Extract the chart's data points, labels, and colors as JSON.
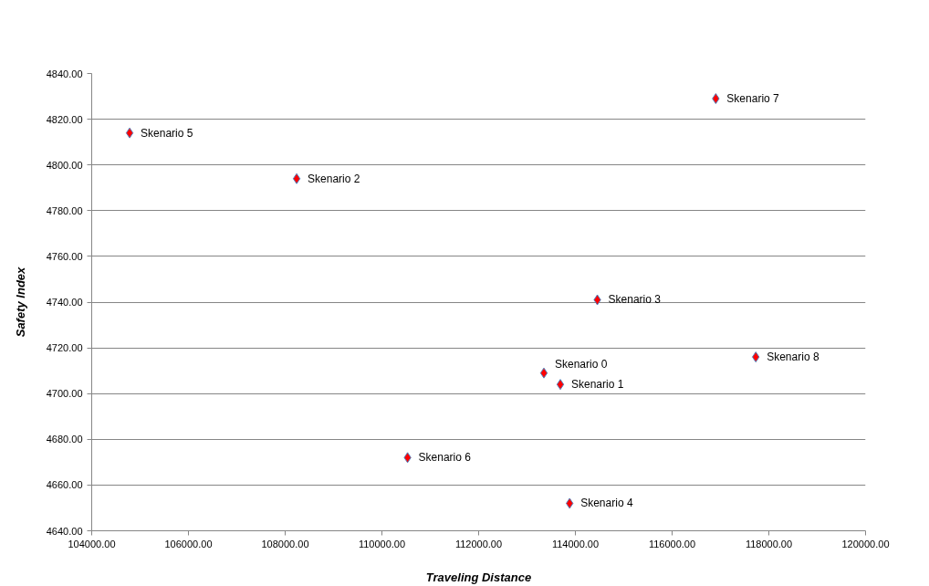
{
  "chart_data": {
    "type": "scatter",
    "xlabel": "Traveling Distance",
    "ylabel": "Safety Index",
    "x": [
      113349,
      113689,
      108237,
      114454,
      113881,
      104784,
      110530,
      116903,
      117730
    ],
    "series": [
      {
        "color": "#ff0000",
        "values": [
          4709,
          4704,
          4794,
          4741,
          4652,
          4814,
          4672,
          4829,
          4716
        ]
      }
    ],
    "annotations": [
      {
        "text": "Skenario 0",
        "x": 113349,
        "y": 4709
      },
      {
        "text": "Skenario 1",
        "x": 113689,
        "y": 4704
      },
      {
        "text": "Skenario 2",
        "x": 108237,
        "y": 4794
      },
      {
        "text": "Skenario 3",
        "x": 114454,
        "y": 4741
      },
      {
        "text": "Skenario 4",
        "x": 113881,
        "y": 4652
      },
      {
        "text": "Skenario 5",
        "x": 104784,
        "y": 4814
      },
      {
        "text": "Skenario 6",
        "x": 110530,
        "y": 4672
      },
      {
        "text": "Skenario 7",
        "x": 116903,
        "y": 4829
      },
      {
        "text": "Skenario 8",
        "x": 117730,
        "y": 4716
      }
    ],
    "marker": "diamond",
    "grid": "y",
    "xlim": [
      104000,
      120000
    ],
    "xticks": [
      {
        "value": 104000,
        "label": "104000.00"
      },
      {
        "value": 106000,
        "label": "106000.00"
      },
      {
        "value": 108000,
        "label": "108000.00"
      },
      {
        "value": 110000,
        "label": "110000.00"
      },
      {
        "value": 112000,
        "label": "112000.00"
      },
      {
        "value": 114000,
        "label": "114000.00"
      },
      {
        "value": 116000,
        "label": "116000.00"
      },
      {
        "value": 118000,
        "label": "118000.00"
      },
      {
        "value": 120000,
        "label": "120000.00"
      }
    ],
    "ylim": [
      4640,
      4840
    ],
    "yticks": [
      {
        "value": 4640,
        "label": "4640.00"
      },
      {
        "value": 4660,
        "label": "4660.00"
      },
      {
        "value": 4680,
        "label": "4680.00"
      },
      {
        "value": 4700,
        "label": "4700.00"
      },
      {
        "value": 4720,
        "label": "4720.00"
      },
      {
        "value": 4740,
        "label": "4740.00"
      },
      {
        "value": 4760,
        "label": "4760.00"
      },
      {
        "value": 4780,
        "label": "4780.00"
      },
      {
        "value": 4800,
        "label": "4800.00"
      },
      {
        "value": 4820,
        "label": "4820.00"
      },
      {
        "value": 4840,
        "label": "4840.00"
      }
    ]
  }
}
